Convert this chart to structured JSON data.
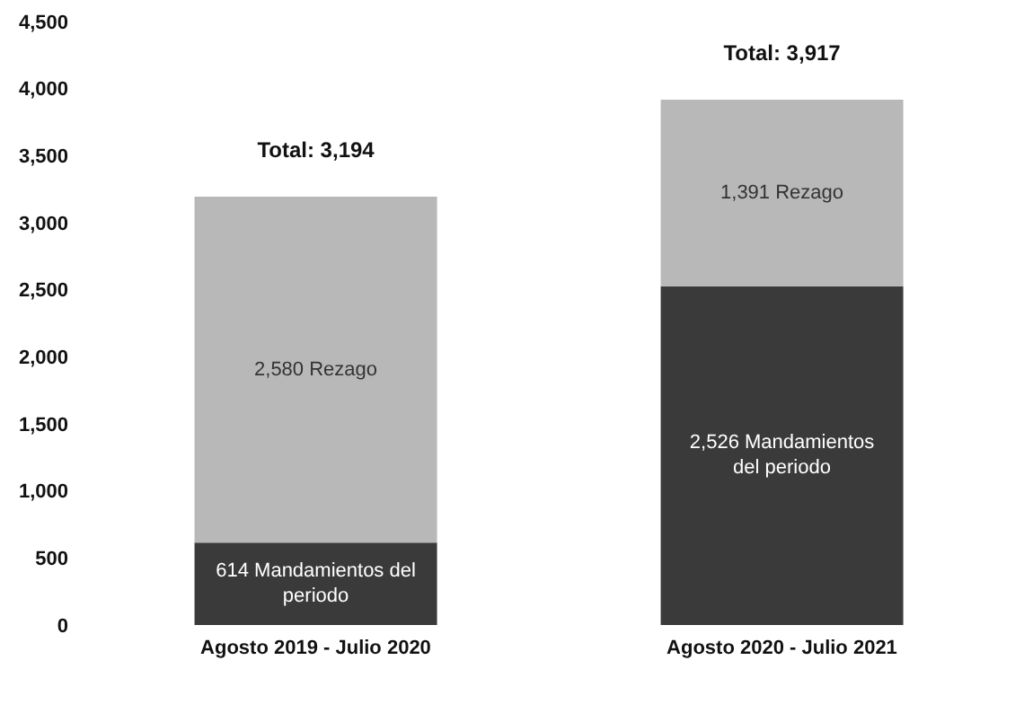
{
  "chart_data": {
    "type": "bar",
    "stacked": true,
    "categories": [
      "Agosto 2019 - Julio 2020",
      "Agosto 2020 - Julio 2021"
    ],
    "series": [
      {
        "name": "Mandamientos del periodo",
        "color": "#3a3a3a",
        "values": [
          614,
          2526
        ],
        "value_labels": [
          "614",
          "2,526"
        ]
      },
      {
        "name": "Rezago",
        "color": "#b8b8b8",
        "values": [
          2580,
          1391
        ],
        "value_labels": [
          "2,580",
          "1,391"
        ]
      }
    ],
    "totals": [
      "Total: 3,194",
      "Total: 3,917"
    ],
    "ylim": [
      0,
      4500
    ],
    "yticks": [
      0,
      500,
      {
        "value": 1000,
        "label": "1,000"
      },
      {
        "value": 1500,
        "label": "1,500"
      },
      {
        "value": 2000,
        "label": "2,000"
      },
      {
        "value": 2500,
        "label": "2,500"
      },
      {
        "value": 3000,
        "label": "3,000"
      },
      {
        "value": 3500,
        "label": "3,500"
      },
      {
        "value": 4000,
        "label": "4,000"
      },
      {
        "value": 4500,
        "label": "4,500"
      }
    ],
    "grid": false,
    "legend": false
  }
}
